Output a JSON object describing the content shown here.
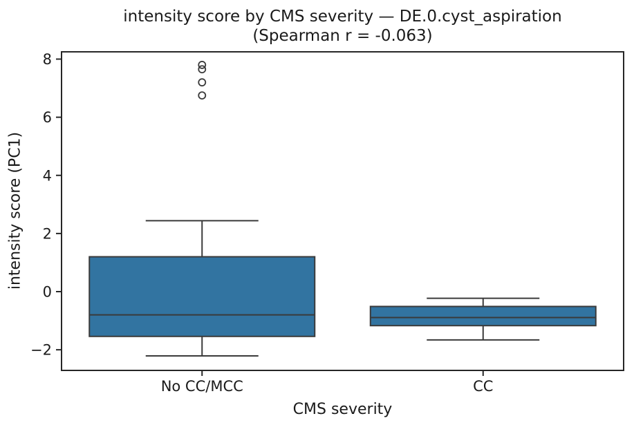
{
  "chart_data": {
    "type": "boxplot",
    "title": "intensity score by CMS severity — DE.0.cyst_aspiration",
    "subtitle": "(Spearman r = -0.063)",
    "xlabel": "CMS severity",
    "ylabel": "intensity score (PC1)",
    "categories": [
      "No CC/MCC",
      "CC"
    ],
    "ylim": [
      -2.71,
      8.25
    ],
    "grid": false,
    "legend": "none",
    "yticks": [
      {
        "value": 8,
        "label": "8"
      },
      {
        "value": 6,
        "label": "6"
      },
      {
        "value": 4,
        "label": "4"
      },
      {
        "value": 2,
        "label": "2"
      },
      {
        "value": 0,
        "label": "0"
      },
      {
        "value": -2,
        "label": "−2"
      }
    ],
    "series": [
      {
        "category": "No CC/MCC",
        "whisker_low": -2.21,
        "q1": -1.54,
        "median": -0.8,
        "q3": 1.2,
        "whisker_high": 2.44,
        "outliers": [
          7.8,
          7.65,
          7.2,
          6.75
        ]
      },
      {
        "category": "CC",
        "whisker_low": -1.66,
        "q1": -1.17,
        "median": -0.89,
        "q3": -0.51,
        "whisker_high": -0.23,
        "outliers": []
      }
    ],
    "colors": {
      "box_fill": "#3274a1",
      "line": "#3a3a3a",
      "spine": "#262626",
      "text": "#1a1a1a",
      "background": "#ffffff"
    }
  }
}
